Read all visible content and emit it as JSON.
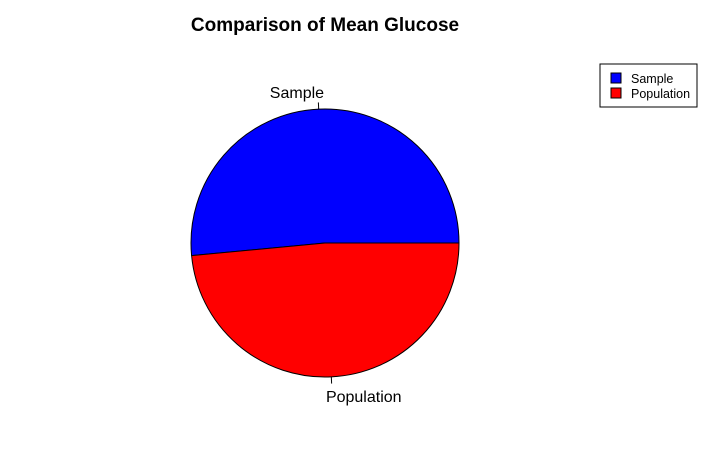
{
  "chart_data": {
    "type": "pie",
    "title": "Comparison of Mean Glucose",
    "categories": [
      "Sample",
      "Population"
    ],
    "values": [
      51.5,
      48.5
    ],
    "colors": [
      "#0000ff",
      "#ff0000"
    ],
    "start_angle_deg": 0,
    "direction": "counterclockwise",
    "legend": {
      "placement": "top-right",
      "entries": [
        "Sample",
        "Population"
      ]
    }
  }
}
